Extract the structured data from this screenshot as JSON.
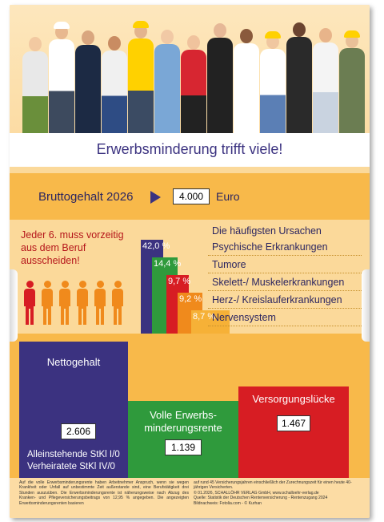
{
  "title": "Erwerbsminderung trifft viele!",
  "gross": {
    "label": "Bruttogehalt 2026",
    "value": "4.000",
    "unit": "Euro"
  },
  "warning": "Jeder 6. muss vorzeitig aus dem Beruf ausscheiden!",
  "people_icons": {
    "count": 6,
    "highlighted": 1,
    "colors": {
      "normal": "#f08a1c",
      "highlighted": "#d71d23"
    }
  },
  "causes": {
    "title": "Die häufigsten Ursachen",
    "items": [
      {
        "percent": "42,0 %",
        "label": "Psychische Erkrankungen",
        "color": "#3b3280"
      },
      {
        "percent": "14,4 %",
        "label": "Tumore",
        "color": "#2f9a3c"
      },
      {
        "percent": "9,7 %",
        "label": "Skelett-/ Muskelerkrankungen",
        "color": "#d71d23"
      },
      {
        "percent": "9,2 %",
        "label": "Herz-/ Kreislauferkrankungen",
        "color": "#f08a1c"
      },
      {
        "percent": "8,7 %",
        "label": "Nervensystem",
        "color": "#f6b137"
      }
    ]
  },
  "net": {
    "title": "Nettogehalt",
    "value": "2.606",
    "note_line1": "Alleinstehende StKl I/0",
    "note_line2": "Verheiratete StKl IV/0"
  },
  "pension": {
    "title_line1": "Volle Erwerbs-",
    "title_line2": "minderungsrente",
    "value": "1.139"
  },
  "gap": {
    "title": "Versorgungslücke",
    "value": "1.467"
  },
  "footnotes": {
    "left": "Auf die volle Erwerbsminderungsrente haben Arbeitnehmer Anspruch, wenn sie wegen Krankheit oder Unfall auf unbestimmte Zeit außerstande sind, eine Berufstätigkeit drei Stunden auszuüben. Die Erwerbsminderungsrente ist näherungsweise nach Abzug des Kranken- und Pflegeversicherungsbeitrags von 12,95 % angegeben. Die angezeigten Erwerbsminderungsrenten basieren",
    "right_line1": "auf rund 45 Versicherungsjahren einschließlich der Zurechnungszeit für einen heute 40-jährigen Versicherten.",
    "right_line2": "© 01.2026, SCHALLÖHR VERLAG GmbH, www.schalloehr-verlag.de",
    "right_line3": "Quelle: Statistik der Deutschen Rentenversicherung - Rentenzugang 2024",
    "right_line4": "Bildnachweis: Fotolia.com - © Kurhan"
  },
  "colors": {
    "navy": "#3b3280",
    "green": "#2f9a3c",
    "red": "#d71d23",
    "orange": "#f8b94a",
    "cream": "#fbd99a"
  }
}
